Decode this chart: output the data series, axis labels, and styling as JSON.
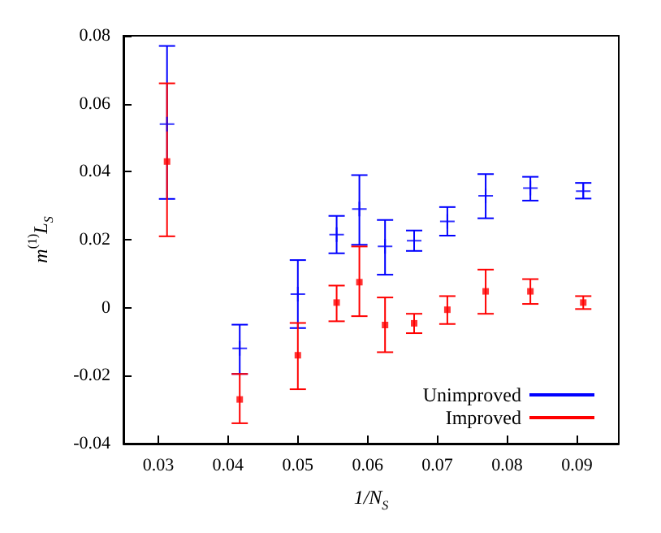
{
  "chart_data": {
    "type": "scatter",
    "xlabel": "1/N$_{S}$",
    "ylabel": "m$^{(1)}$L$_{S}$",
    "x": [
      0.03125,
      0.04167,
      0.05,
      0.05556,
      0.05882,
      0.0625,
      0.06667,
      0.07143,
      0.07692,
      0.08333,
      0.09091
    ],
    "series": [
      {
        "name": "Unimproved",
        "color": "#0000ff",
        "marker": "cross",
        "values": [
          0.054,
          -0.012,
          0.004,
          0.0215,
          0.029,
          0.018,
          0.0197,
          0.0254,
          0.0329,
          0.0352,
          0.0343
        ],
        "errors": [
          [
            0.032,
            0.077
          ],
          [
            -0.0195,
            -0.005
          ],
          [
            -0.006,
            0.014
          ],
          [
            0.016,
            0.027
          ],
          [
            0.0185,
            0.039
          ],
          [
            0.0097,
            0.0258
          ],
          [
            0.0167,
            0.0227
          ],
          [
            0.0212,
            0.0296
          ],
          [
            0.0263,
            0.0393
          ],
          [
            0.0315,
            0.0385
          ],
          [
            0.0321,
            0.0367
          ]
        ]
      },
      {
        "name": "Improved",
        "color": "#ff0000",
        "marker": "square",
        "values": [
          0.043,
          -0.027,
          -0.014,
          0.0015,
          0.0075,
          -0.0051,
          -0.0046,
          -0.0006,
          0.0048,
          0.0048,
          0.0015
        ],
        "errors": [
          [
            0.021,
            0.066
          ],
          [
            -0.034,
            -0.0195
          ],
          [
            -0.024,
            -0.0045
          ],
          [
            -0.004,
            0.0065
          ],
          [
            -0.0025,
            0.018
          ],
          [
            -0.0131,
            0.003
          ],
          [
            -0.0075,
            -0.0018
          ],
          [
            -0.0048,
            0.0034
          ],
          [
            -0.0018,
            0.0112
          ],
          [
            0.0011,
            0.0084
          ],
          [
            -0.0004,
            0.0034
          ]
        ]
      }
    ],
    "xlim": [
      0.025,
      0.096
    ],
    "xticks": [
      0.03,
      0.04,
      0.05,
      0.06,
      0.07,
      0.08,
      0.09
    ],
    "ylim": [
      -0.04,
      0.08
    ],
    "yticks": [
      -0.04,
      -0.02,
      0,
      0.02,
      0.04,
      0.06,
      0.08
    ],
    "grid": false,
    "legend": "bottom right"
  }
}
